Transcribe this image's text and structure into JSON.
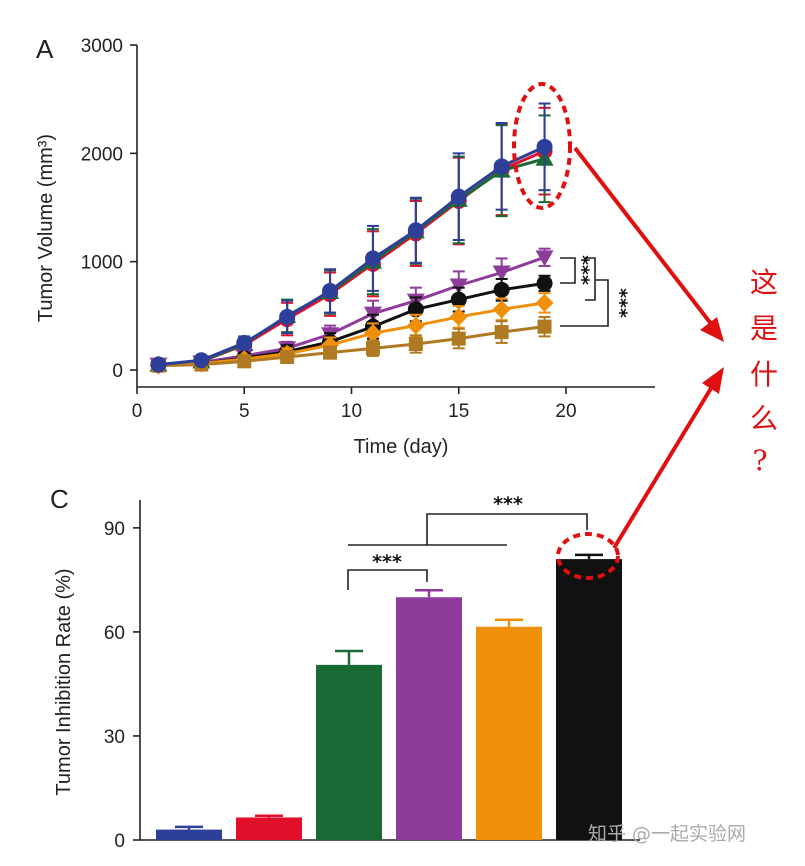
{
  "chart_data": [
    {
      "panel": "A",
      "type": "line",
      "xlabel": "Time (day)",
      "ylabel": "Tumor Volume (mm³)",
      "xlim": [
        0,
        25
      ],
      "ylim": [
        0,
        3000
      ],
      "xticks": [
        0,
        5,
        10,
        15,
        20
      ],
      "yticks": [
        0,
        1000,
        2000,
        3000
      ],
      "grid": false,
      "series": [
        {
          "color": "#e0102a",
          "marker": "circle",
          "x": [
            1,
            3,
            5,
            7,
            9,
            11,
            13,
            15,
            17,
            19
          ],
          "y": [
            50,
            80,
            230,
            470,
            700,
            980,
            1260,
            1560,
            1850,
            2020
          ],
          "err": [
            20,
            30,
            60,
            150,
            200,
            300,
            300,
            400,
            420,
            400
          ]
        },
        {
          "color": "#1a6a35",
          "marker": "triangle-up",
          "x": [
            1,
            3,
            5,
            7,
            9,
            11,
            13,
            15,
            17,
            19
          ],
          "y": [
            50,
            80,
            240,
            500,
            720,
            1000,
            1280,
            1570,
            1840,
            1950
          ],
          "err": [
            20,
            30,
            60,
            150,
            200,
            300,
            300,
            400,
            420,
            400
          ]
        },
        {
          "color": "#8e3b9c",
          "marker": "triangle-down",
          "x": [
            1,
            3,
            5,
            7,
            9,
            11,
            13,
            15,
            17,
            19
          ],
          "y": [
            50,
            70,
            130,
            200,
            330,
            520,
            640,
            780,
            900,
            1040
          ],
          "err": [
            15,
            20,
            40,
            60,
            80,
            120,
            120,
            130,
            130,
            80
          ]
        },
        {
          "color": "#111111",
          "marker": "circle",
          "x": [
            1,
            3,
            5,
            7,
            9,
            11,
            13,
            15,
            17,
            19
          ],
          "y": [
            50,
            60,
            110,
            170,
            260,
            400,
            560,
            650,
            740,
            800
          ],
          "err": [
            15,
            20,
            40,
            60,
            80,
            110,
            110,
            110,
            100,
            70
          ]
        },
        {
          "color": "#f0900a",
          "marker": "diamond",
          "x": [
            1,
            3,
            5,
            7,
            9,
            11,
            13,
            15,
            17,
            19
          ],
          "y": [
            40,
            60,
            100,
            150,
            230,
            340,
            410,
            490,
            560,
            620
          ],
          "err": [
            15,
            20,
            30,
            50,
            70,
            90,
            100,
            100,
            100,
            90
          ]
        },
        {
          "color": "#b07a22",
          "marker": "square",
          "x": [
            1,
            3,
            5,
            7,
            9,
            11,
            13,
            15,
            17,
            19
          ],
          "y": [
            40,
            50,
            80,
            120,
            160,
            200,
            240,
            290,
            350,
            400
          ],
          "err": [
            15,
            20,
            30,
            40,
            50,
            70,
            80,
            90,
            100,
            90
          ]
        },
        {
          "color": "#2e3f99",
          "marker": "circle",
          "x": [
            1,
            3,
            5,
            7,
            9,
            11,
            13,
            15,
            17,
            19
          ],
          "y": [
            50,
            90,
            250,
            490,
            730,
            1030,
            1290,
            1600,
            1880,
            2060
          ],
          "err": [
            20,
            30,
            60,
            150,
            200,
            300,
            300,
            400,
            400,
            400
          ]
        }
      ],
      "significance": [
        "***",
        "***",
        "***"
      ]
    },
    {
      "panel": "C",
      "type": "bar",
      "ylabel": "Tumor Inhibition Rate (%)",
      "ylim": [
        0,
        100
      ],
      "yticks": [
        0,
        30,
        60,
        90
      ],
      "grid": false,
      "values": [
        3,
        6.5,
        50.5,
        70,
        61.5,
        81
      ],
      "errors": [
        0.8,
        0.5,
        4,
        2,
        2,
        1.2
      ],
      "colors": [
        "#2e3f99",
        "#e0102a",
        "#1a6a35",
        "#8e3b9c",
        "#f0900a",
        "#111111"
      ],
      "significance": [
        "***",
        "***"
      ]
    }
  ],
  "annotation": {
    "question_chars": [
      "这",
      "是",
      "什",
      "么",
      "?"
    ],
    "highlight_color": "#e01010"
  },
  "watermark": "知乎 @一起实验网"
}
